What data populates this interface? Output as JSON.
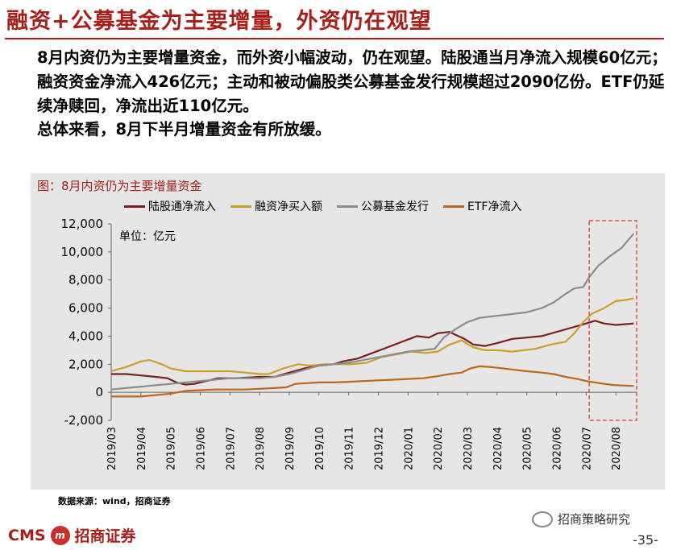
{
  "header": {
    "title": "融资+公募基金为主要增量，外资仍在观望"
  },
  "body": {
    "paragraph1": "8月内资仍为主要增量资金，而外资小幅波动，仍在观望。陆股通当月净流入规模60亿元；融资资金净流入426亿元；主动和被动偏股类公募基金发行规模超过2090亿份。ETF仍延续净赎回，净流出近110亿元。",
    "paragraph2": "总体来看，8月下半月增量资金有所放缓。"
  },
  "figure": {
    "title": "图：8月内资仍为主要增量资金",
    "unit_label": "单位：亿元",
    "source": "数据来源：wind，招商证券"
  },
  "footer": {
    "logo_text": "CMS",
    "logo_mark": "m",
    "company": "招商证券",
    "wechat_account": "招商策略研究",
    "page_number": "-35-"
  },
  "chart_data": {
    "type": "line",
    "title": "图：8月内资仍为主要增量资金",
    "ylabel": "单位：亿元",
    "ylim": [
      -2000,
      12000
    ],
    "yticks": [
      -2000,
      0,
      2000,
      4000,
      6000,
      8000,
      10000,
      12000
    ],
    "ytick_labels": [
      "-2,000",
      "0",
      "2,000",
      "4,000",
      "6,000",
      "8,000",
      "10,000",
      "12,000"
    ],
    "x_range": [
      0,
      17.7
    ],
    "categories": [
      "2019/03",
      "2019/04",
      "2019/05",
      "2019/06",
      "2019/07",
      "2019/08",
      "2019/09",
      "2019/10",
      "2019/11",
      "2019/12",
      "2020/01",
      "2020/02",
      "2020/03",
      "2020/04",
      "2020/05",
      "2020/06",
      "2020/07",
      "2020/08"
    ],
    "highlight_range": [
      16.1,
      17.7
    ],
    "series": [
      {
        "name": "陆股通净流入",
        "color": "#7b1f1f",
        "points": [
          [
            0,
            1300
          ],
          [
            0.5,
            1300
          ],
          [
            1,
            1200
          ],
          [
            1.5,
            1100
          ],
          [
            1.9,
            1000
          ],
          [
            2.2,
            700
          ],
          [
            2.5,
            550
          ],
          [
            2.8,
            600
          ],
          [
            3.2,
            800
          ],
          [
            3.6,
            1000
          ],
          [
            4.2,
            1000
          ],
          [
            5,
            1100
          ],
          [
            5.5,
            1100
          ],
          [
            6,
            1400
          ],
          [
            6.5,
            1700
          ],
          [
            7,
            1900
          ],
          [
            7.5,
            2000
          ],
          [
            7.8,
            2200
          ],
          [
            8.3,
            2400
          ],
          [
            8.8,
            2800
          ],
          [
            9.3,
            3200
          ],
          [
            9.8,
            3600
          ],
          [
            10.3,
            4000
          ],
          [
            10.7,
            3900
          ],
          [
            11,
            4200
          ],
          [
            11.4,
            4300
          ],
          [
            11.6,
            4100
          ],
          [
            11.9,
            3800
          ],
          [
            12.2,
            3400
          ],
          [
            12.6,
            3300
          ],
          [
            13,
            3500
          ],
          [
            13.5,
            3800
          ],
          [
            14,
            3900
          ],
          [
            14.5,
            4000
          ],
          [
            15,
            4300
          ],
          [
            15.5,
            4600
          ],
          [
            16,
            4900
          ],
          [
            16.3,
            5100
          ],
          [
            16.6,
            4900
          ],
          [
            17,
            4800
          ],
          [
            17.3,
            4850
          ],
          [
            17.6,
            4900
          ]
        ]
      },
      {
        "name": "融资净买入额",
        "color": "#c9a227",
        "points": [
          [
            0,
            1500
          ],
          [
            0.5,
            1800
          ],
          [
            1,
            2200
          ],
          [
            1.3,
            2300
          ],
          [
            1.7,
            2000
          ],
          [
            2,
            1700
          ],
          [
            2.5,
            1500
          ],
          [
            3,
            1500
          ],
          [
            3.5,
            1500
          ],
          [
            4,
            1500
          ],
          [
            4.5,
            1400
          ],
          [
            5,
            1300
          ],
          [
            5.3,
            1300
          ],
          [
            5.8,
            1700
          ],
          [
            6.3,
            2000
          ],
          [
            6.7,
            1900
          ],
          [
            7.2,
            2000
          ],
          [
            7.6,
            2000
          ],
          [
            8.1,
            2000
          ],
          [
            8.6,
            2100
          ],
          [
            9.1,
            2500
          ],
          [
            9.6,
            2700
          ],
          [
            10.1,
            2900
          ],
          [
            10.6,
            2800
          ],
          [
            11,
            2900
          ],
          [
            11.4,
            3400
          ],
          [
            11.8,
            3700
          ],
          [
            12.2,
            3200
          ],
          [
            12.6,
            3000
          ],
          [
            13,
            3000
          ],
          [
            13.5,
            2900
          ],
          [
            13.9,
            3000
          ],
          [
            14.3,
            3100
          ],
          [
            14.8,
            3400
          ],
          [
            15.3,
            3600
          ],
          [
            15.6,
            4200
          ],
          [
            15.9,
            5000
          ],
          [
            16.2,
            5600
          ],
          [
            16.6,
            6000
          ],
          [
            17,
            6500
          ],
          [
            17.4,
            6600
          ],
          [
            17.6,
            6700
          ]
        ]
      },
      {
        "name": "公募基金发行",
        "color": "#8c8c8c",
        "points": [
          [
            0,
            200
          ],
          [
            0.5,
            300
          ],
          [
            1,
            400
          ],
          [
            1.5,
            500
          ],
          [
            2,
            600
          ],
          [
            2.5,
            700
          ],
          [
            3,
            800
          ],
          [
            3.5,
            900
          ],
          [
            4,
            1000
          ],
          [
            4.5,
            1000
          ],
          [
            5,
            1000
          ],
          [
            5.5,
            1100
          ],
          [
            6,
            1300
          ],
          [
            6.5,
            1600
          ],
          [
            7,
            1900
          ],
          [
            7.5,
            2000
          ],
          [
            8,
            2100
          ],
          [
            8.5,
            2300
          ],
          [
            9,
            2500
          ],
          [
            9.5,
            2700
          ],
          [
            10,
            2900
          ],
          [
            10.5,
            3000
          ],
          [
            10.9,
            3100
          ],
          [
            11.2,
            3900
          ],
          [
            11.6,
            4500
          ],
          [
            12,
            5000
          ],
          [
            12.4,
            5300
          ],
          [
            12.8,
            5400
          ],
          [
            13.2,
            5500
          ],
          [
            13.6,
            5600
          ],
          [
            14,
            5700
          ],
          [
            14.5,
            6000
          ],
          [
            14.9,
            6400
          ],
          [
            15.3,
            7000
          ],
          [
            15.6,
            7400
          ],
          [
            15.9,
            7500
          ],
          [
            16.1,
            8200
          ],
          [
            16.4,
            9000
          ],
          [
            16.8,
            9700
          ],
          [
            17.2,
            10300
          ],
          [
            17.6,
            11300
          ]
        ]
      },
      {
        "name": "ETF净流入",
        "color": "#c0661a",
        "points": [
          [
            0,
            -300
          ],
          [
            0.5,
            -300
          ],
          [
            1,
            -300
          ],
          [
            1.5,
            -200
          ],
          [
            2,
            -100
          ],
          [
            2.5,
            100
          ],
          [
            3,
            150
          ],
          [
            3.5,
            200
          ],
          [
            4,
            200
          ],
          [
            4.5,
            200
          ],
          [
            5,
            250
          ],
          [
            5.5,
            300
          ],
          [
            5.9,
            350
          ],
          [
            6.2,
            600
          ],
          [
            6.6,
            650
          ],
          [
            7,
            700
          ],
          [
            7.5,
            700
          ],
          [
            8,
            750
          ],
          [
            8.5,
            800
          ],
          [
            9,
            850
          ],
          [
            9.5,
            900
          ],
          [
            10,
            950
          ],
          [
            10.5,
            1000
          ],
          [
            11,
            1150
          ],
          [
            11.4,
            1300
          ],
          [
            11.8,
            1400
          ],
          [
            12.1,
            1700
          ],
          [
            12.4,
            1850
          ],
          [
            12.8,
            1800
          ],
          [
            13.2,
            1700
          ],
          [
            13.6,
            1600
          ],
          [
            14,
            1500
          ],
          [
            14.5,
            1400
          ],
          [
            14.9,
            1300
          ],
          [
            15.3,
            1100
          ],
          [
            15.7,
            950
          ],
          [
            16,
            800
          ],
          [
            16.3,
            700
          ],
          [
            16.6,
            600
          ],
          [
            17,
            500
          ],
          [
            17.3,
            480
          ],
          [
            17.6,
            450
          ]
        ]
      }
    ]
  }
}
